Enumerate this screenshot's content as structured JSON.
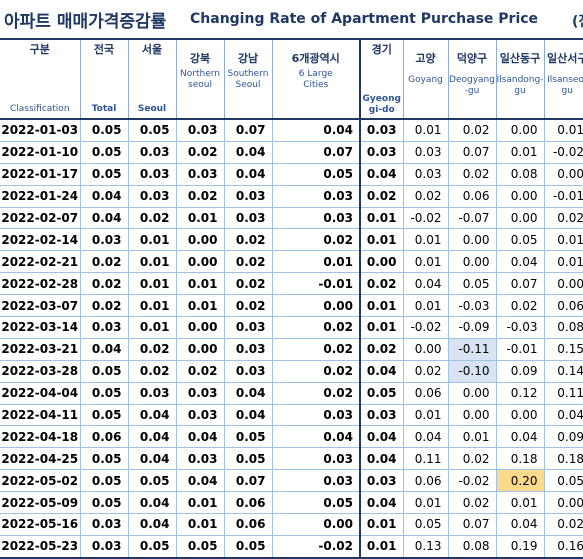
{
  "title": {
    "ko": "아파트 매매가격증감률",
    "en": "Changing Rate of Apartment Purchase Price",
    "unit_fragment": "(전"
  },
  "colors": {
    "highlight_blue": "#dae3f3",
    "highlight_yellow": "#ffd98b",
    "header_text": "#1f3864"
  },
  "columns": [
    {
      "ko": "구분",
      "en": "Classification"
    },
    {
      "ko": "전국",
      "en": "Total"
    },
    {
      "ko": "서울",
      "en": "Seoul"
    },
    {
      "ko": "강북",
      "en": "Northern seoul"
    },
    {
      "ko": "강남",
      "en": "Southern Seoul"
    },
    {
      "ko": "6개광역시",
      "en": "6 Large Cities"
    },
    {
      "ko": "경기",
      "en": "Gyeonggi-do"
    },
    {
      "ko": "고양",
      "en": "Goyang"
    },
    {
      "ko": "덕양구",
      "en": "Deogyang-gu"
    },
    {
      "ko": "일산동구",
      "en": "Ilsandong-gu"
    },
    {
      "ko": "일산서구",
      "en": "Ilsanseo-gu"
    }
  ],
  "rows": [
    {
      "date": "2022-01-03",
      "values": [
        "0.05",
        "0.05",
        "0.03",
        "0.07",
        "0.04",
        "0.03",
        "0.01",
        "0.02",
        "0.00",
        "0.01"
      ]
    },
    {
      "date": "2022-01-10",
      "values": [
        "0.05",
        "0.03",
        "0.02",
        "0.04",
        "0.07",
        "0.03",
        "0.03",
        "0.07",
        "0.01",
        "-0.02"
      ]
    },
    {
      "date": "2022-01-17",
      "values": [
        "0.05",
        "0.03",
        "0.03",
        "0.04",
        "0.05",
        "0.04",
        "0.03",
        "0.02",
        "0.08",
        "0.00"
      ]
    },
    {
      "date": "2022-01-24",
      "values": [
        "0.04",
        "0.03",
        "0.02",
        "0.03",
        "0.03",
        "0.02",
        "0.02",
        "0.06",
        "0.00",
        "-0.01"
      ]
    },
    {
      "date": "2022-02-07",
      "values": [
        "0.04",
        "0.02",
        "0.01",
        "0.03",
        "0.03",
        "0.01",
        "-0.02",
        "-0.07",
        "0.00",
        "0.02"
      ]
    },
    {
      "date": "2022-02-14",
      "values": [
        "0.03",
        "0.01",
        "0.00",
        "0.02",
        "0.02",
        "0.01",
        "0.01",
        "0.00",
        "0.05",
        "0.01"
      ]
    },
    {
      "date": "2022-02-21",
      "values": [
        "0.02",
        "0.01",
        "0.00",
        "0.02",
        "0.01",
        "0.00",
        "0.01",
        "0.00",
        "0.04",
        "0.01"
      ]
    },
    {
      "date": "2022-02-28",
      "values": [
        "0.02",
        "0.01",
        "0.01",
        "0.02",
        "-0.01",
        "0.02",
        "0.04",
        "0.05",
        "0.07",
        "0.00"
      ]
    },
    {
      "date": "2022-03-07",
      "values": [
        "0.02",
        "0.01",
        "0.01",
        "0.02",
        "0.00",
        "0.01",
        "0.01",
        "-0.03",
        "0.02",
        "0.06"
      ]
    },
    {
      "date": "2022-03-14",
      "values": [
        "0.03",
        "0.01",
        "0.00",
        "0.03",
        "0.02",
        "0.01",
        "-0.02",
        "-0.09",
        "-0.03",
        "0.08"
      ]
    },
    {
      "date": "2022-03-21",
      "values": [
        "0.04",
        "0.02",
        "0.00",
        "0.03",
        "0.02",
        "0.02",
        "0.00",
        "-0.11",
        "-0.01",
        "0.15"
      ]
    },
    {
      "date": "2022-03-28",
      "values": [
        "0.05",
        "0.02",
        "0.02",
        "0.03",
        "0.02",
        "0.04",
        "0.02",
        "-0.10",
        "0.09",
        "0.14"
      ]
    },
    {
      "date": "2022-04-04",
      "values": [
        "0.05",
        "0.03",
        "0.03",
        "0.04",
        "0.02",
        "0.05",
        "0.06",
        "0.00",
        "0.12",
        "0.11"
      ]
    },
    {
      "date": "2022-04-11",
      "values": [
        "0.05",
        "0.04",
        "0.03",
        "0.04",
        "0.03",
        "0.03",
        "0.01",
        "0.00",
        "0.00",
        "0.04"
      ]
    },
    {
      "date": "2022-04-18",
      "values": [
        "0.06",
        "0.04",
        "0.04",
        "0.05",
        "0.04",
        "0.04",
        "0.04",
        "0.01",
        "0.04",
        "0.09"
      ]
    },
    {
      "date": "2022-04-25",
      "values": [
        "0.05",
        "0.04",
        "0.03",
        "0.05",
        "0.03",
        "0.04",
        "0.11",
        "0.02",
        "0.18",
        "0.18"
      ]
    },
    {
      "date": "2022-05-02",
      "values": [
        "0.05",
        "0.05",
        "0.04",
        "0.07",
        "0.03",
        "0.03",
        "0.06",
        "-0.02",
        "0.20",
        "0.05"
      ]
    },
    {
      "date": "2022-05-09",
      "values": [
        "0.05",
        "0.04",
        "0.01",
        "0.06",
        "0.05",
        "0.04",
        "0.01",
        "0.02",
        "0.01",
        "0.00"
      ]
    },
    {
      "date": "2022-05-16",
      "values": [
        "0.03",
        "0.04",
        "0.01",
        "0.06",
        "0.00",
        "0.01",
        "0.05",
        "0.07",
        "0.04",
        "0.02"
      ]
    },
    {
      "date": "2022-05-23",
      "values": [
        "0.03",
        "0.05",
        "0.05",
        "0.05",
        "-0.02",
        "0.01",
        "0.13",
        "0.08",
        "0.19",
        "0.16"
      ]
    }
  ]
}
